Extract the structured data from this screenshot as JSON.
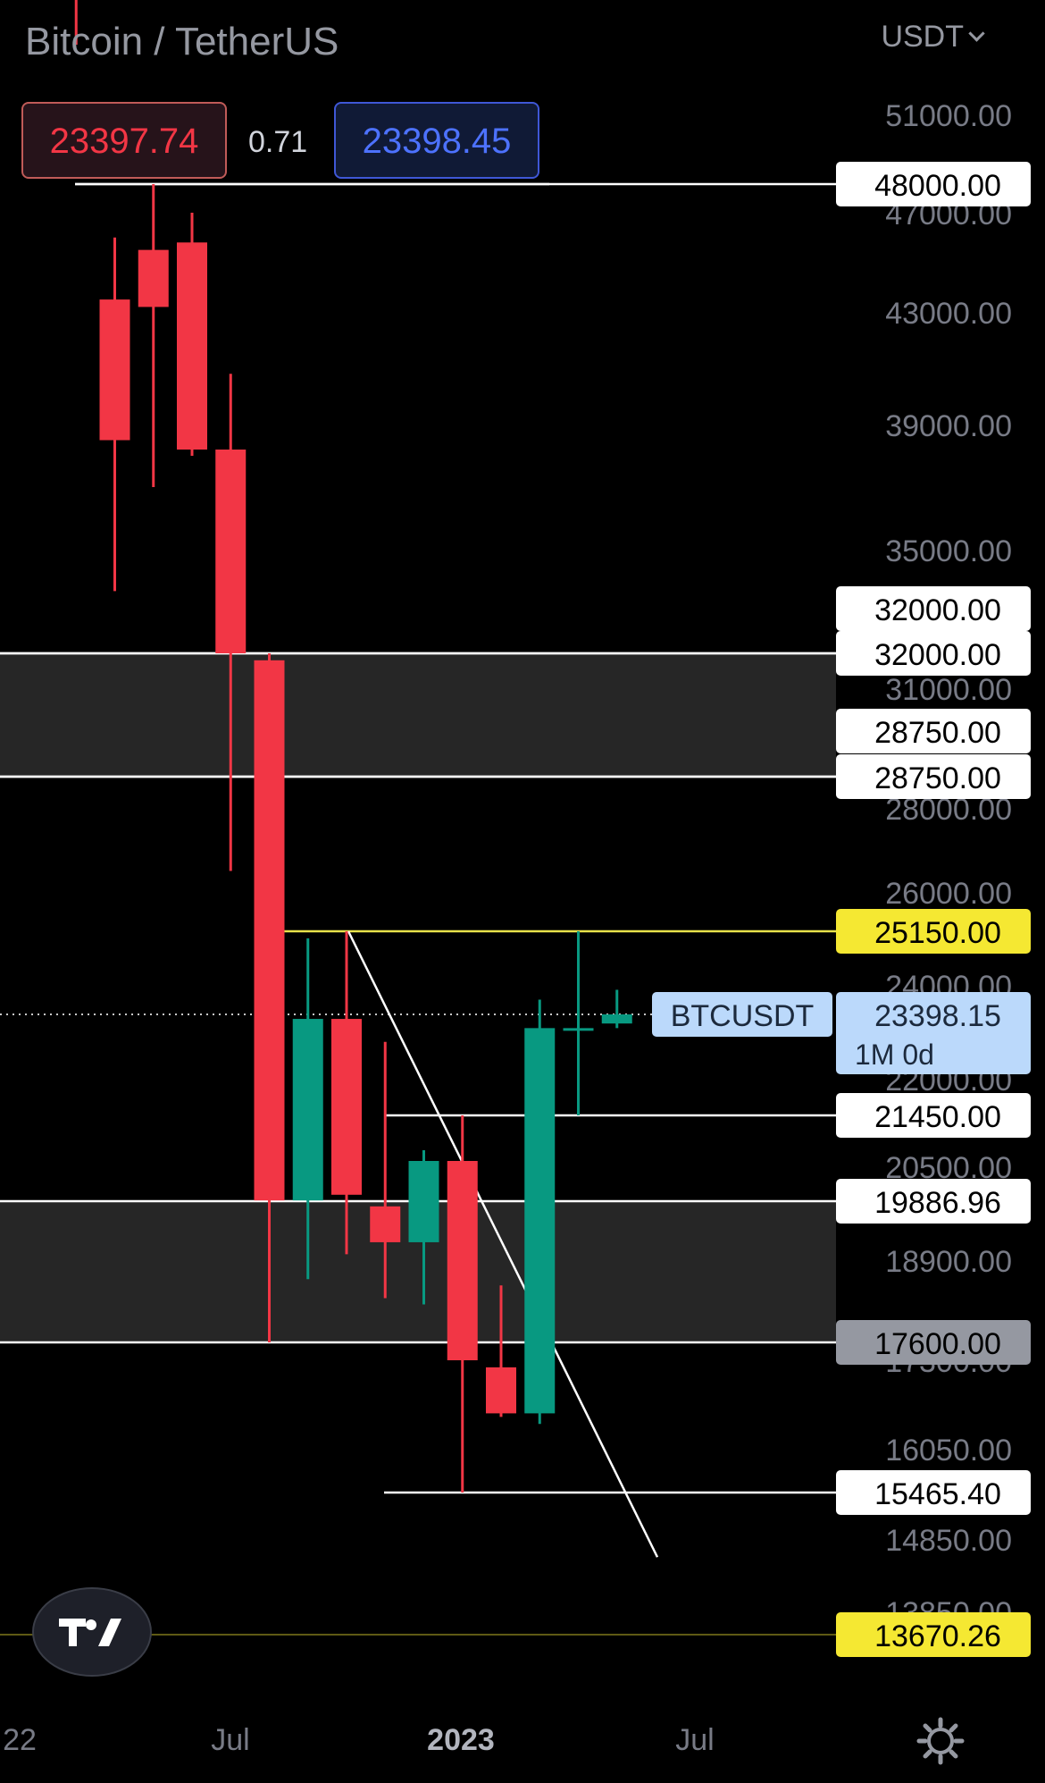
{
  "header": {
    "title": "Bitcoin / TetherUS",
    "currency": "USDT",
    "sell_price": "23397.74",
    "spread": "0.71",
    "buy_price": "23398.45"
  },
  "icons": {
    "logo": "tradingview-logo-icon",
    "settings": "gear-icon",
    "currency_menu": "chevron-down-icon"
  },
  "colors": {
    "background": "#000000",
    "up": "#089981",
    "down": "#f23645",
    "zone": "#262626",
    "level_white": "#ffffff",
    "level_yellow": "#f5e832",
    "label_gray": "#9598a1",
    "price_tag": "#bbd9fb"
  },
  "chart_data": {
    "type": "candlestick",
    "symbol": "BTCUSDT",
    "timeframe": "1M",
    "last_price": "23398.15",
    "countdown": "1M 0d",
    "y_axis_labels": [
      "51000.00",
      "47000.00",
      "43000.00",
      "39000.00",
      "35000.00",
      "31000.00",
      "28000.00",
      "26000.00",
      "24000.00",
      "22000.00",
      "20500.00",
      "18900.00",
      "17300.00",
      "16050.00",
      "14850.00",
      "13850.00"
    ],
    "y_axis_values": [
      51000,
      47000,
      43000,
      39000,
      35000,
      31000,
      28000,
      26000,
      24000,
      22000,
      20500,
      18900,
      17300,
      16050,
      14850,
      13850
    ],
    "x_axis_labels": [
      "22",
      "Jul",
      "2023",
      "Jul"
    ],
    "x_axis_dates": [
      "2022-01",
      "2022-07",
      "2023-01",
      "2023-07"
    ],
    "candles": [
      {
        "date": "2021-10",
        "open": 61300,
        "high": 67000,
        "low": 54000,
        "close": 57000
      },
      {
        "date": "2021-11",
        "open": 43500,
        "high": 46000,
        "low": 33800,
        "close": 38500
      },
      {
        "date": "2021-12",
        "open": 45500,
        "high": 48000,
        "low": 37000,
        "close": 43200
      },
      {
        "date": "2022-01",
        "open": 45800,
        "high": 47000,
        "low": 38000,
        "close": 38200
      },
      {
        "date": "2022-02",
        "open": 38200,
        "high": 40800,
        "low": 26500,
        "close": 32000
      },
      {
        "date": "2022-03",
        "open": 31800,
        "high": 32000,
        "low": 17600,
        "close": 19900
      },
      {
        "date": "2022-04",
        "open": 19900,
        "high": 25000,
        "low": 18600,
        "close": 23300
      },
      {
        "date": "2022-05",
        "open": 23300,
        "high": 25150,
        "low": 19000,
        "close": 20000
      },
      {
        "date": "2022-06",
        "open": 19800,
        "high": 22800,
        "low": 18300,
        "close": 19200
      },
      {
        "date": "2022-07",
        "open": 19200,
        "high": 20800,
        "low": 18200,
        "close": 20600
      },
      {
        "date": "2022-08",
        "open": 20600,
        "high": 21450,
        "low": 15465.4,
        "close": 17300
      },
      {
        "date": "2022-09",
        "open": 17200,
        "high": 18500,
        "low": 16500,
        "close": 16550
      },
      {
        "date": "2022-10",
        "open": 16550,
        "high": 23700,
        "low": 16400,
        "close": 23100
      },
      {
        "date": "2022-11",
        "open": 23100,
        "high": 25150,
        "low": 21450,
        "close": 23100
      },
      {
        "date": "2022-12",
        "open": 23200,
        "high": 23900,
        "low": 23100,
        "close": 23398.15
      }
    ],
    "zones": [
      {
        "from": 28750,
        "to": 32000
      },
      {
        "from": 17600,
        "to": 19886.96
      }
    ],
    "levels": [
      {
        "value": 48000,
        "label": "48000.00",
        "style": "white"
      },
      {
        "value": 32000,
        "label": "32000.00",
        "style": "white"
      },
      {
        "value": 32000,
        "label": "32000.00",
        "style": "white"
      },
      {
        "value": 28750,
        "label": "28750.00",
        "style": "white"
      },
      {
        "value": 28750,
        "label": "28750.00",
        "style": "white"
      },
      {
        "value": 25150,
        "label": "25150.00",
        "style": "yellow"
      },
      {
        "value": 21450,
        "label": "21450.00",
        "style": "white"
      },
      {
        "value": 19886.96,
        "label": "19886.96",
        "style": "white"
      },
      {
        "value": 17600,
        "label": "17600.00",
        "style": "gray"
      },
      {
        "value": 15465.4,
        "label": "15465.40",
        "style": "white"
      },
      {
        "value": 13670.26,
        "label": "13670.26",
        "style": "yellow"
      }
    ],
    "trendline": {
      "from": {
        "date": "2022-05",
        "value": 25150
      },
      "to": {
        "date": "2023-01",
        "value": 14600
      }
    }
  }
}
